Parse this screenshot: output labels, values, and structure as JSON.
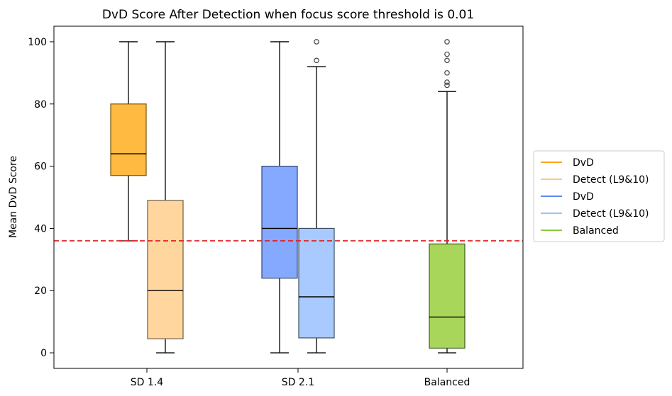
{
  "chart_data": {
    "type": "boxplot",
    "title": "DvD Score After Detection when focus score threshold is 0.01",
    "xlabel": "",
    "ylabel": "Mean DvD Score",
    "ylim": [
      -5,
      105
    ],
    "yticks": [
      0,
      20,
      40,
      60,
      80,
      100
    ],
    "categories": [
      "SD 1.4",
      "SD 2.1",
      "Balanced"
    ],
    "threshold": {
      "value": 36,
      "color": "#e31a1c",
      "style": "dashed"
    },
    "boxes": [
      {
        "category": "SD 1.4",
        "legend_label": "DvD",
        "fill": "#ffba42",
        "edge": "#7a5200",
        "whisker_low": 36,
        "q1": 57,
        "median": 64,
        "q3": 80,
        "whisker_high": 100,
        "outliers": []
      },
      {
        "category": "SD 1.4",
        "legend_label": "Detect (L9&10)",
        "fill": "#ffd79e",
        "edge": "#6a5a45",
        "whisker_low": 0,
        "q1": 4.5,
        "median": 20,
        "q3": 49,
        "whisker_high": 100,
        "outliers": []
      },
      {
        "category": "SD 2.1",
        "legend_label": "DvD",
        "fill": "#85a9ff",
        "edge": "#33476e",
        "whisker_low": 0,
        "q1": 24,
        "median": 40,
        "q3": 60,
        "whisker_high": 100,
        "outliers": []
      },
      {
        "category": "SD 2.1",
        "legend_label": "Detect (L9&10)",
        "fill": "#a9caff",
        "edge": "#3d4f66",
        "whisker_low": 0,
        "q1": 4.8,
        "median": 18,
        "q3": 40,
        "whisker_high": 92,
        "outliers": [
          94,
          100
        ]
      },
      {
        "category": "Balanced",
        "legend_label": "Balanced",
        "fill": "#a7d65a",
        "edge": "#3f5a1a",
        "whisker_low": 0,
        "q1": 1.5,
        "median": 11.5,
        "q3": 35,
        "whisker_high": 84,
        "outliers": [
          86,
          87,
          90,
          94,
          96,
          100
        ]
      }
    ],
    "legend": {
      "placement": "right",
      "entries": [
        {
          "label": "DvD",
          "color": "#ffa31a"
        },
        {
          "label": "Detect (L9&10)",
          "color": "#ffc781"
        },
        {
          "label": "DvD",
          "color": "#5a8cf0"
        },
        {
          "label": "Detect (L9&10)",
          "color": "#9cc0ff"
        },
        {
          "label": "Balanced",
          "color": "#8ccc3a"
        }
      ]
    }
  }
}
